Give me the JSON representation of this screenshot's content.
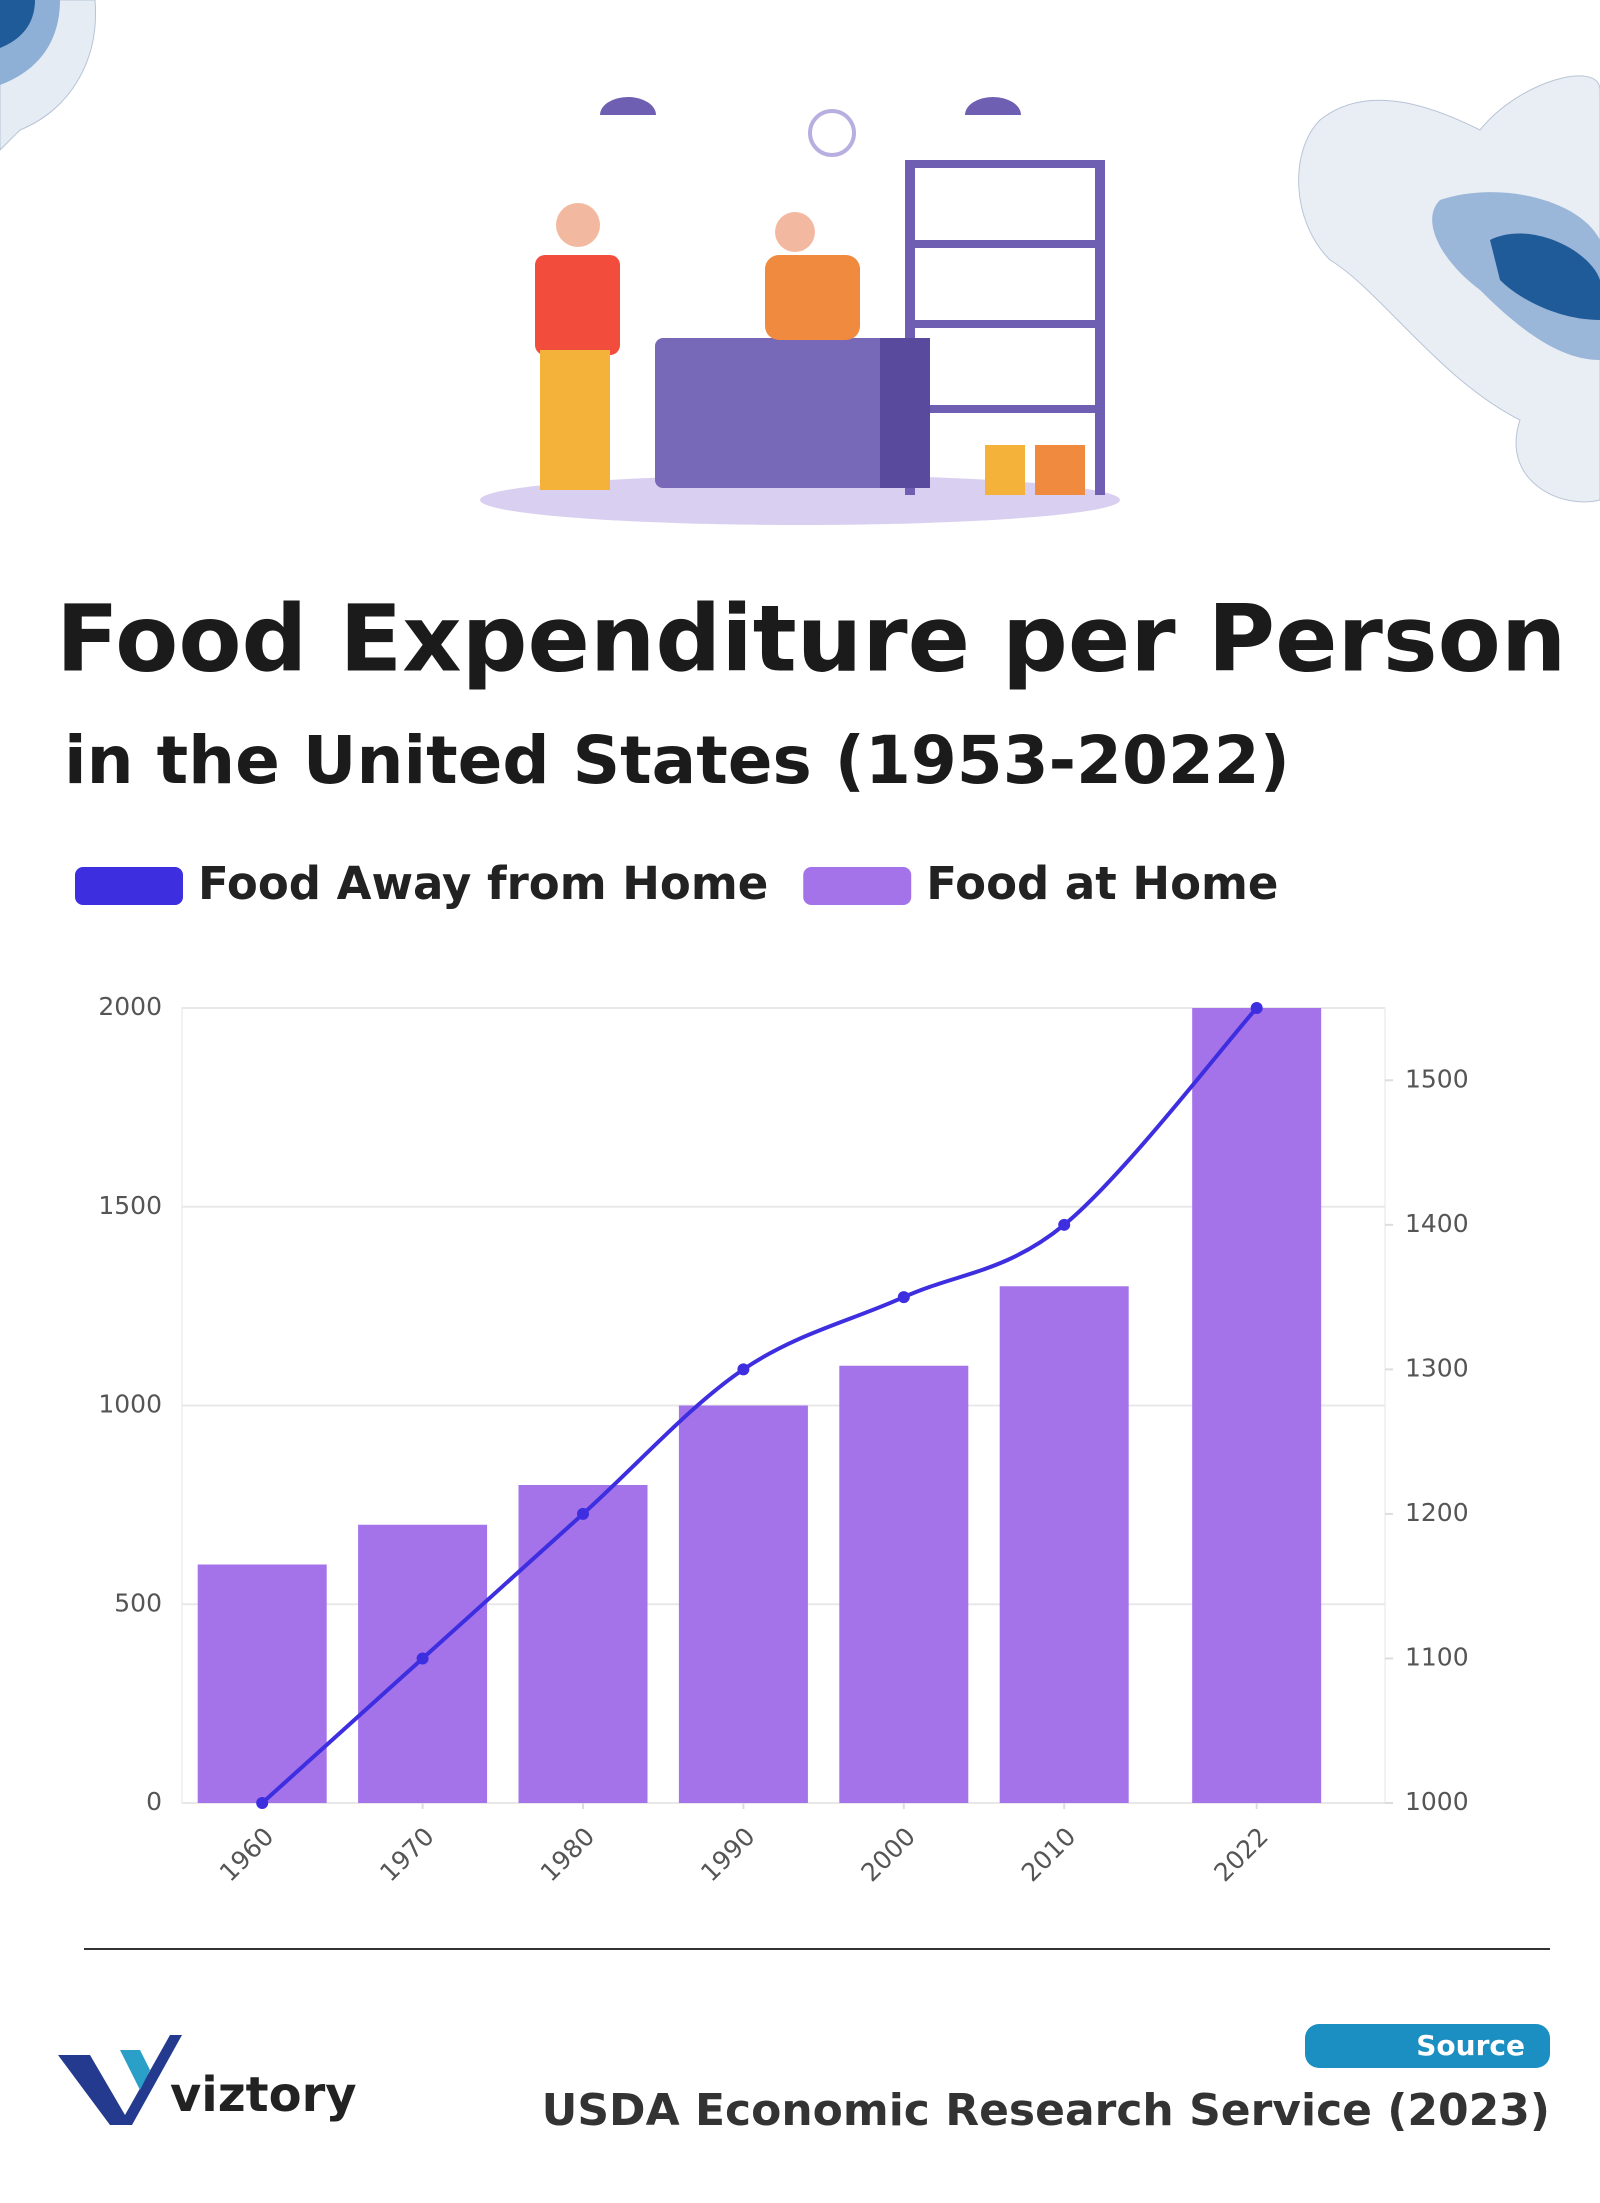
{
  "chart_data": {
    "type": "bar",
    "title": "Food Expenditure per Person",
    "subtitle": "in the United States (1953-2022)",
    "x": [
      1960,
      1970,
      1980,
      1990,
      2000,
      2010,
      2022
    ],
    "xlim": [
      1955,
      2030
    ],
    "xticks": [
      1960,
      1970,
      1980,
      1990,
      2000,
      2010,
      2022
    ],
    "ylim": [
      0,
      2000
    ],
    "yticks": [
      0,
      500,
      1000,
      1500,
      2000
    ],
    "y2lim": [
      1000,
      1550
    ],
    "y2ticks": [
      1000,
      1100,
      1200,
      1300,
      1400,
      1500
    ],
    "grid": true,
    "series": [
      {
        "name": "Food Away from Home",
        "type": "line",
        "axis": "y2",
        "color": "#3d2ee0",
        "values": [
          1000,
          1100,
          1200,
          1300,
          1350,
          1400,
          1550
        ]
      },
      {
        "name": "Food at Home",
        "type": "bar",
        "color": "#a473e9",
        "values": [
          600,
          700,
          800,
          1000,
          1100,
          1300,
          2000
        ]
      }
    ]
  },
  "footer": {
    "brand": "viztory",
    "source_label": "Source",
    "source": "USDA Economic Research Service (2023)"
  }
}
